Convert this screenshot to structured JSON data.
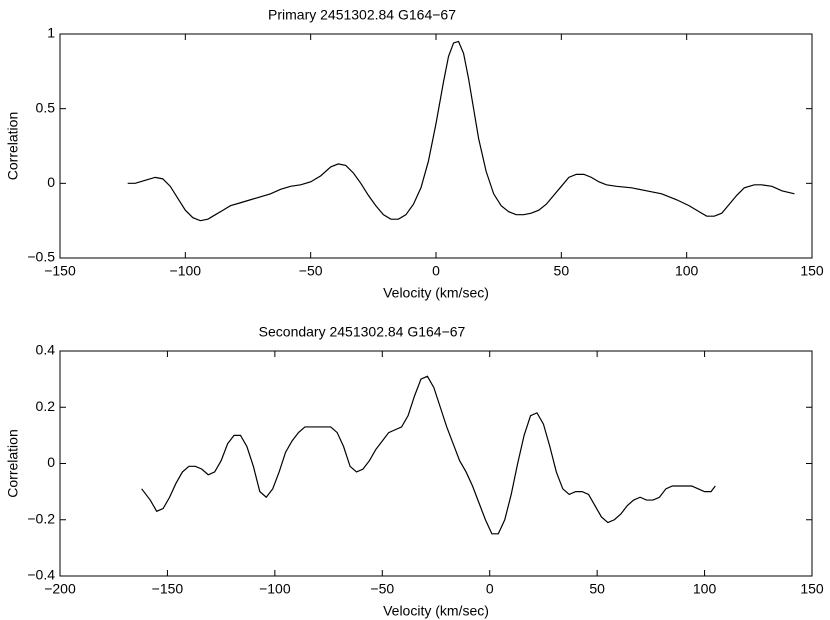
{
  "chart_data": [
    {
      "type": "line",
      "title": "Primary   2451302.84  G164−67",
      "x_label": "Velocity (km/sec)",
      "y_label": "Correlation",
      "color": "#000000",
      "x": [
        -123,
        -120,
        -116,
        -112,
        -109,
        -106,
        -103,
        -100,
        -97,
        -94,
        -91,
        -88,
        -85,
        -82,
        -78,
        -74,
        -70,
        -66,
        -62,
        -58,
        -54,
        -50,
        -46,
        -42,
        -39,
        -36,
        -33,
        -30,
        -27,
        -24,
        -21,
        -18,
        -15,
        -12,
        -9,
        -6,
        -3,
        0,
        3,
        5,
        7,
        9,
        11,
        13,
        15,
        17,
        20,
        23,
        26,
        29,
        32,
        35,
        38,
        41,
        44,
        47,
        50,
        53,
        56,
        59,
        62,
        65,
        68,
        72,
        78,
        84,
        90,
        96,
        101,
        105,
        108,
        111,
        114,
        117,
        120,
        123,
        127,
        130,
        134,
        138,
        143
      ],
      "values": [
        0.0,
        0.0,
        0.02,
        0.04,
        0.03,
        -0.02,
        -0.1,
        -0.18,
        -0.23,
        -0.25,
        -0.24,
        -0.21,
        -0.18,
        -0.15,
        -0.13,
        -0.11,
        -0.09,
        -0.07,
        -0.04,
        -0.02,
        -0.01,
        0.01,
        0.05,
        0.11,
        0.13,
        0.12,
        0.07,
        0.0,
        -0.08,
        -0.15,
        -0.21,
        -0.24,
        -0.24,
        -0.21,
        -0.14,
        -0.03,
        0.15,
        0.4,
        0.68,
        0.85,
        0.94,
        0.95,
        0.87,
        0.7,
        0.5,
        0.3,
        0.08,
        -0.07,
        -0.15,
        -0.19,
        -0.21,
        -0.21,
        -0.2,
        -0.18,
        -0.14,
        -0.08,
        -0.02,
        0.04,
        0.06,
        0.06,
        0.04,
        0.01,
        -0.01,
        -0.02,
        -0.03,
        -0.05,
        -0.07,
        -0.11,
        -0.15,
        -0.19,
        -0.22,
        -0.22,
        -0.2,
        -0.14,
        -0.08,
        -0.03,
        -0.01,
        -0.01,
        -0.02,
        -0.05,
        -0.07
      ],
      "xlim": [
        -150,
        150
      ],
      "ylim": [
        -0.5,
        1
      ],
      "xticks": [
        {
          "value": -150,
          "label": "−150"
        },
        {
          "value": -100,
          "label": "−100"
        },
        {
          "value": -50,
          "label": "−50"
        },
        0,
        50,
        100,
        150
      ],
      "yticks": [
        {
          "value": -0.5,
          "label": "−0.5"
        },
        0,
        0.5,
        1
      ]
    },
    {
      "type": "line",
      "title": "Secondary   2451302.84  G164−67",
      "x_label": "Velocity (km/sec)",
      "y_label": "Correlation",
      "color": "#000000",
      "x": [
        -162,
        -158,
        -155,
        -152,
        -149,
        -146,
        -143,
        -140,
        -137,
        -134,
        -131,
        -128,
        -125,
        -122,
        -119,
        -116,
        -113,
        -110,
        -107,
        -104,
        -101,
        -98,
        -95,
        -92,
        -89,
        -86,
        -83,
        -80,
        -77,
        -74,
        -71,
        -68,
        -65,
        -62,
        -59,
        -56,
        -53,
        -50,
        -47,
        -44,
        -41,
        -38,
        -35,
        -32,
        -29,
        -26,
        -23,
        -20,
        -17,
        -14,
        -11,
        -8,
        -5,
        -2,
        1,
        4,
        7,
        10,
        13,
        16,
        19,
        22,
        25,
        28,
        31,
        34,
        37,
        40,
        43,
        46,
        49,
        52,
        55,
        58,
        61,
        64,
        67,
        70,
        73,
        76,
        79,
        82,
        85,
        88,
        91,
        94,
        97,
        100,
        103,
        105
      ],
      "values": [
        -0.09,
        -0.13,
        -0.17,
        -0.16,
        -0.12,
        -0.07,
        -0.03,
        -0.01,
        -0.01,
        -0.02,
        -0.04,
        -0.03,
        0.01,
        0.07,
        0.1,
        0.1,
        0.06,
        -0.01,
        -0.1,
        -0.12,
        -0.09,
        -0.03,
        0.04,
        0.08,
        0.11,
        0.13,
        0.13,
        0.13,
        0.13,
        0.13,
        0.11,
        0.06,
        -0.01,
        -0.03,
        -0.02,
        0.01,
        0.05,
        0.08,
        0.11,
        0.12,
        0.13,
        0.17,
        0.24,
        0.3,
        0.31,
        0.27,
        0.2,
        0.13,
        0.07,
        0.01,
        -0.03,
        -0.08,
        -0.14,
        -0.2,
        -0.25,
        -0.25,
        -0.2,
        -0.11,
        0.0,
        0.1,
        0.17,
        0.18,
        0.14,
        0.06,
        -0.03,
        -0.09,
        -0.11,
        -0.1,
        -0.1,
        -0.11,
        -0.15,
        -0.19,
        -0.21,
        -0.2,
        -0.18,
        -0.15,
        -0.13,
        -0.12,
        -0.13,
        -0.13,
        -0.12,
        -0.09,
        -0.08,
        -0.08,
        -0.08,
        -0.08,
        -0.09,
        -0.1,
        -0.1,
        -0.08
      ],
      "xlim": [
        -200,
        150
      ],
      "ylim": [
        -0.4,
        0.4
      ],
      "xticks": [
        {
          "value": -200,
          "label": "−200"
        },
        {
          "value": -150,
          "label": "−150"
        },
        {
          "value": -100,
          "label": "−100"
        },
        {
          "value": -50,
          "label": "−50"
        },
        0,
        50,
        100,
        150
      ],
      "yticks": [
        {
          "value": -0.4,
          "label": "−0.4"
        },
        {
          "value": -0.2,
          "label": "−0.2"
        },
        0,
        0.2,
        0.4
      ]
    }
  ]
}
